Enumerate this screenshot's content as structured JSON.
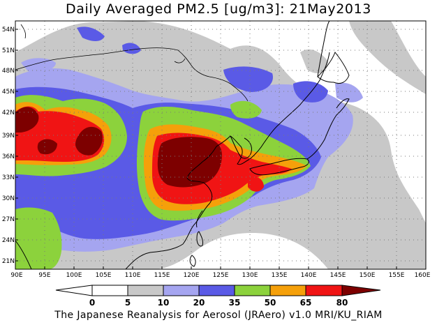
{
  "title": "Daily Averaged PM2.5 [ug/m3]: 21May2013",
  "footer": "The Japanese Reanalysis for Aerosol (JRAero) v1.0 MRI/KU_RIAM",
  "lat_labels": [
    "54N",
    "51N",
    "48N",
    "45N",
    "42N",
    "39N",
    "36N",
    "33N",
    "30N",
    "27N",
    "24N",
    "21N"
  ],
  "lon_labels": [
    "90E",
    "95E",
    "100E",
    "105E",
    "110E",
    "115E",
    "120E",
    "125E",
    "130E",
    "135E",
    "140E",
    "145E",
    "150E",
    "155E",
    "160E"
  ],
  "colorbar": {
    "labels": [
      "0",
      "5",
      "10",
      "20",
      "35",
      "50",
      "65",
      "80"
    ],
    "colors": [
      "#ffffff",
      "#c8c8c8",
      "#a5a5f0",
      "#5a5ae6",
      "#8cd23c",
      "#f5a00a",
      "#f01414",
      "#7d0000"
    ]
  },
  "map_colors": {
    "white": "#ffffff",
    "gray": "#c8c8c8",
    "light_blue": "#a5a5f0",
    "blue": "#5a5ae6",
    "green": "#8cd23c",
    "orange": "#f5a00a",
    "red": "#f01414",
    "dark_red": "#7d0000"
  }
}
